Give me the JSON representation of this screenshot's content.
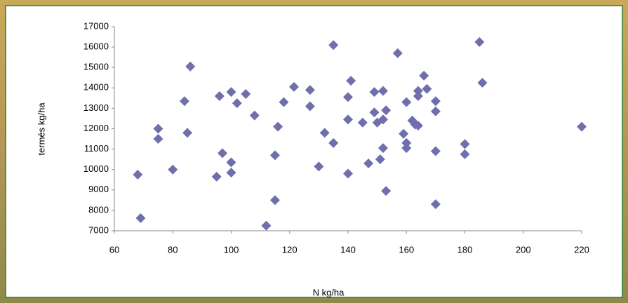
{
  "chart_data": {
    "type": "scatter",
    "xlabel": "N kg/ha",
    "ylabel": "termés kg/ha",
    "color": "#6f6fae",
    "x": [
      68,
      69,
      75,
      75,
      80,
      84,
      85,
      86,
      95,
      96,
      97,
      100,
      100,
      100,
      102,
      105,
      108,
      112,
      115,
      115,
      116,
      118,
      121.5,
      127,
      127,
      130,
      132,
      135,
      135,
      140,
      140,
      140,
      141,
      145,
      147,
      149,
      149,
      150,
      151,
      152,
      152,
      152,
      153,
      153,
      157,
      159,
      160,
      160,
      160,
      162,
      163,
      164,
      164,
      164,
      166,
      167,
      170,
      170,
      170,
      170,
      180,
      180,
      185,
      186,
      220
    ],
    "y": [
      9750,
      7620,
      12000,
      11500,
      10000,
      13350,
      11800,
      15050,
      9650,
      13600,
      10800,
      13800,
      10350,
      9850,
      13250,
      13700,
      12650,
      7250,
      8500,
      10700,
      12100,
      13300,
      14050,
      13900,
      13100,
      10150,
      11800,
      16100,
      11300,
      13550,
      12450,
      9800,
      14350,
      12300,
      10300,
      13800,
      12800,
      12300,
      10500,
      13850,
      12450,
      11050,
      12900,
      8950,
      15700,
      11750,
      13300,
      11300,
      11050,
      12400,
      12200,
      13850,
      13600,
      12150,
      14600,
      13950,
      13350,
      12850,
      10900,
      8300,
      11250,
      10750,
      16250,
      14250,
      12100
    ],
    "xlim": [
      60,
      220
    ],
    "xticks": [
      60,
      80,
      100,
      120,
      140,
      160,
      180,
      200,
      220
    ],
    "ylim": [
      7000,
      17000
    ],
    "yticks": [
      7000,
      8000,
      9000,
      10000,
      11000,
      12000,
      13000,
      14000,
      15000,
      16000,
      17000
    ],
    "grid": false
  }
}
